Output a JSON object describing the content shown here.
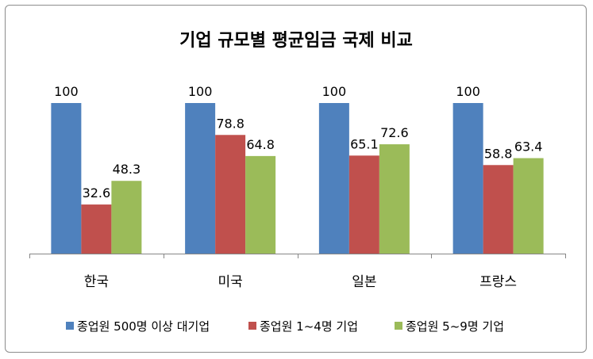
{
  "chart_data": {
    "type": "bar",
    "title": "기업 규모별 평균임금 국제 비교",
    "categories": [
      "한국",
      "미국",
      "일본",
      "프랑스"
    ],
    "series": [
      {
        "name": "종업원 500명 이상 대기업",
        "color": "#4f81bd",
        "values": [
          100,
          100,
          100,
          100
        ]
      },
      {
        "name": "종업원 1~4명 기업",
        "color": "#c0504d",
        "values": [
          32.6,
          78.8,
          65.1,
          58.8
        ]
      },
      {
        "name": "종업원 5~9명 기업",
        "color": "#9bbb59",
        "values": [
          48.3,
          64.8,
          72.6,
          63.4
        ]
      }
    ],
    "ylim": [
      0,
      100
    ],
    "grid": false,
    "legend_position": "bottom",
    "xlabel": "",
    "ylabel": ""
  }
}
